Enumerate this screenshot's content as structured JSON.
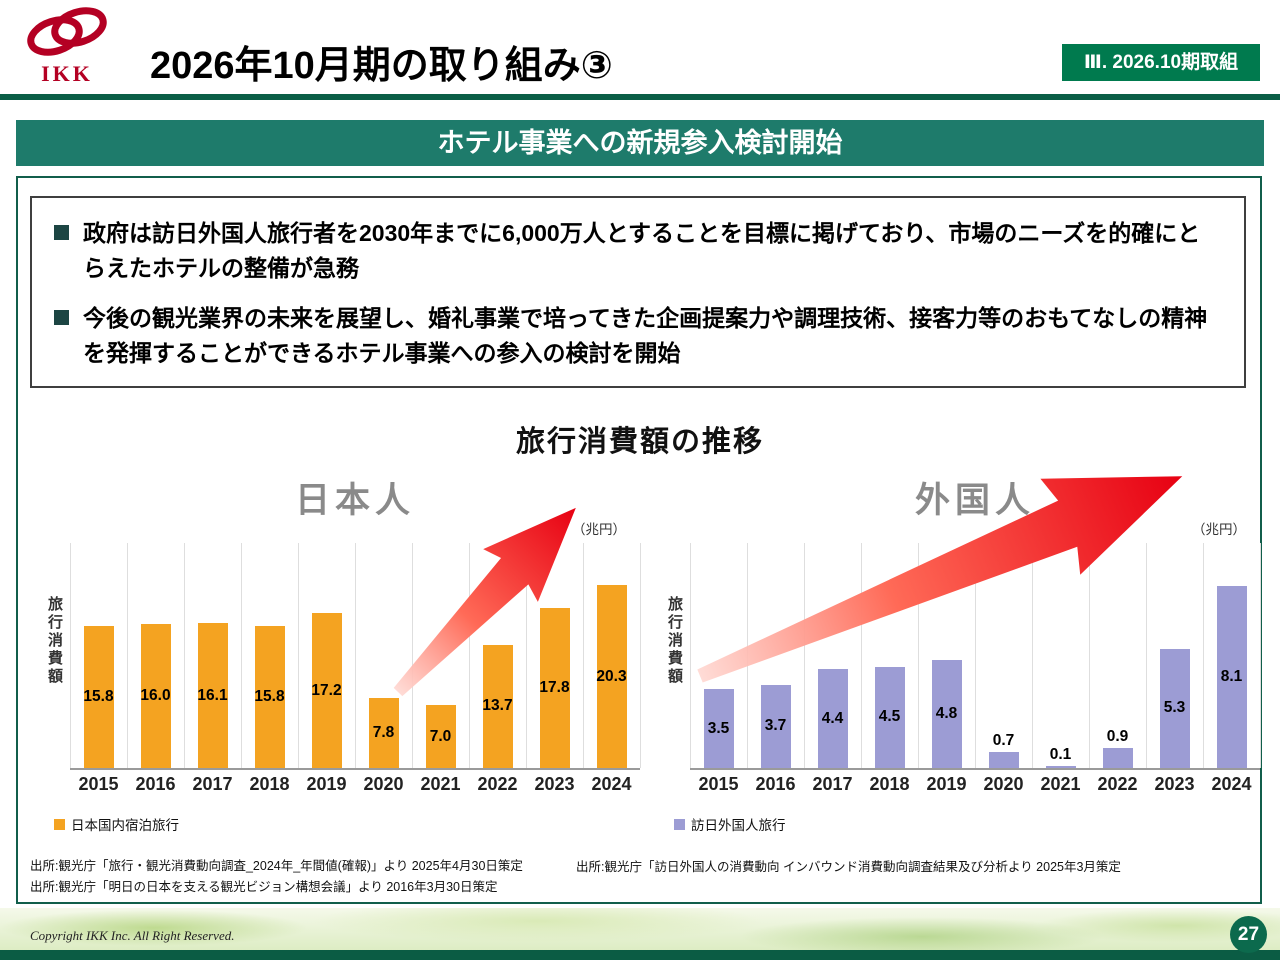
{
  "header": {
    "logo_text": "IKK",
    "title": "2026年10月期の取り組み③",
    "badge": "Ⅲ. 2026.10期取組"
  },
  "banner": {
    "title": "ホテル事業への新規参入検討開始"
  },
  "bullets": [
    "政府は訪日外国人旅行者を2030年までに6,000万人とすることを目標に掲げており、市場のニーズを的確にとらえたホテルの整備が急務",
    "今後の観光業界の未来を展望し、婚礼事業で培ってきた企画提案力や調理技術、接客力等のおもてなしの精神を発揮することができるホテル事業への参入の検討を開始"
  ],
  "chart_section": {
    "title": "旅行消費額の推移"
  },
  "chart_data": [
    {
      "type": "bar",
      "title": "日本人",
      "categories": [
        "2015",
        "2016",
        "2017",
        "2018",
        "2019",
        "2020",
        "2021",
        "2022",
        "2023",
        "2024"
      ],
      "values": [
        15.8,
        16.0,
        16.1,
        15.8,
        17.2,
        7.8,
        7.0,
        13.7,
        17.8,
        20.3
      ],
      "labels": [
        "15.8",
        "16.0",
        "16.1",
        "15.8",
        "17.2",
        "7.8",
        "7.0",
        "13.7",
        "17.8",
        "20.3"
      ],
      "legend": "日本国内宿泊旅行",
      "legend_position": "bottom-left",
      "bar_color": "#F4A321",
      "ylabel": "旅行消費額",
      "unit": "（兆円）",
      "xlabel": "",
      "ylim": [
        0,
        25
      ],
      "grid": "vertical-light"
    },
    {
      "type": "bar",
      "title": "外国人",
      "categories": [
        "2015",
        "2016",
        "2017",
        "2018",
        "2019",
        "2020",
        "2021",
        "2022",
        "2023",
        "2024"
      ],
      "values": [
        3.5,
        3.7,
        4.4,
        4.5,
        4.8,
        0.7,
        0.1,
        0.9,
        5.3,
        8.1
      ],
      "labels": [
        "3.5",
        "3.7",
        "4.4",
        "4.5",
        "4.8",
        "0.7",
        "0.1",
        "0.9",
        "5.3",
        "8.1"
      ],
      "legend": "訪日外国人旅行",
      "legend_position": "bottom-left",
      "bar_color": "#9C9CD4",
      "ylabel": "旅行消費額",
      "unit": "（兆円）",
      "xlabel": "",
      "ylim": [
        0,
        10
      ],
      "grid": "vertical-light"
    }
  ],
  "sources": {
    "left": [
      "出所:観光庁「旅行・観光消費動向調査_2024年_年間値(確報)」より 2025年4月30日策定",
      "出所:観光庁「明日の日本を支える観光ビジョン構想会議」より 2016年3月30日策定"
    ],
    "right": [
      "出所:観光庁「訪日外国人の消費動向 インバウンド消費動向調査結果及び分析より 2025年3月策定"
    ]
  },
  "footer": {
    "copyright": "Copyright IKK Inc. All Right Reserved.",
    "page_number": "27"
  },
  "colors": {
    "badge_green": "#007A4E",
    "divider_green": "#0B5E46",
    "banner_teal": "#1E7B6B",
    "box_border_green": "#115E4B",
    "bullet_square": "#1C4543",
    "bar_orange": "#F4A321",
    "bar_purple": "#9C9CD4",
    "arrow_red": "#E70012",
    "footer_bar_green": "#0B5C44",
    "chart_title_gray": "#8A8A8A"
  }
}
